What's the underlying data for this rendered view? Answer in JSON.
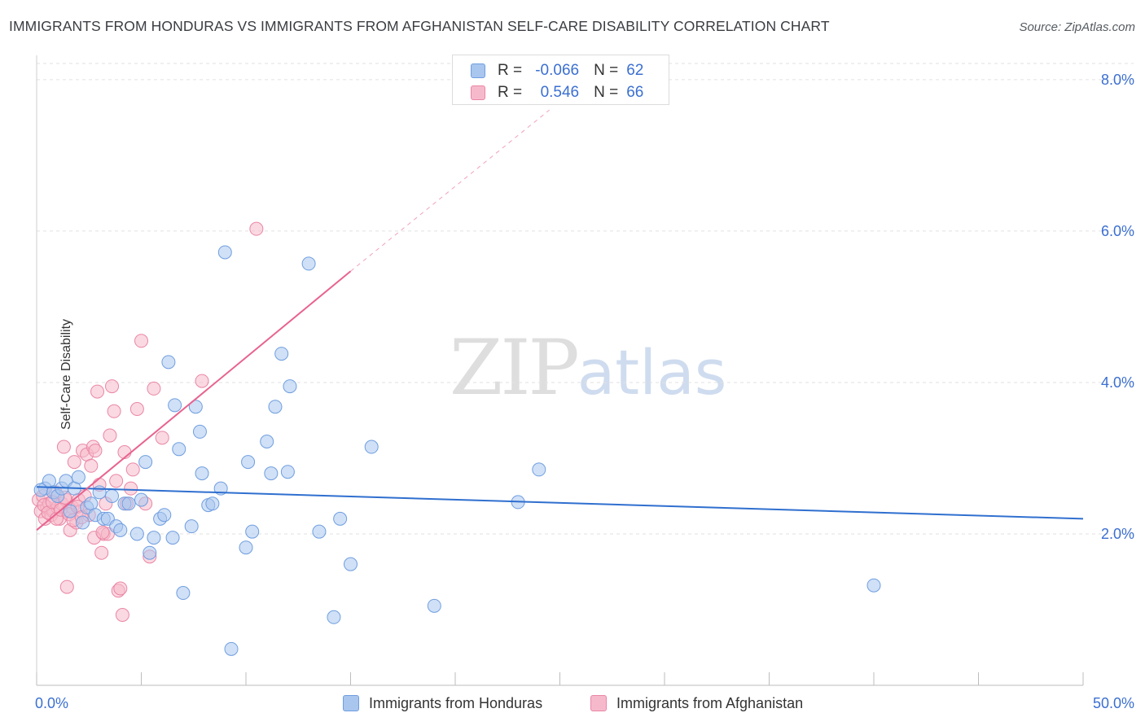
{
  "header": {
    "title": "IMMIGRANTS FROM HONDURAS VS IMMIGRANTS FROM AFGHANISTAN SELF-CARE DISABILITY CORRELATION CHART",
    "source": "Source: ZipAtlas.com"
  },
  "watermark": {
    "zip": "ZIP",
    "atlas": "atlas"
  },
  "legend": {
    "r_label": "R =",
    "n_label": "N =",
    "series": [
      {
        "r": "-0.066",
        "n": "62"
      },
      {
        "r": "0.546",
        "n": "66"
      }
    ]
  },
  "colors": {
    "blue_fill": "#a9c6ef",
    "blue_stroke": "#6f9ee0",
    "blue_line": "#2f6fcf",
    "pink_fill": "#f6b9cb",
    "pink_stroke": "#ea86a5",
    "pink_line": "#e8638e",
    "tick_label": "#3b6fd1",
    "grid": "#e2e2e2"
  },
  "chart_data": {
    "type": "scatter",
    "title": "IMMIGRANTS FROM HONDURAS VS IMMIGRANTS FROM AFGHANISTAN SELF-CARE DISABILITY CORRELATION CHART",
    "xlabel": "",
    "ylabel": "Self-Care Disability",
    "xlim": [
      0,
      50
    ],
    "ylim": [
      0,
      8.3
    ],
    "x_tick_labels": [
      "0.0%",
      "50.0%"
    ],
    "y_ticks": [
      2,
      4,
      6,
      8
    ],
    "y_tick_labels": [
      "2.0%",
      "4.0%",
      "6.0%",
      "8.0%"
    ],
    "grid": true,
    "legend_position": "top-center",
    "series": [
      {
        "name": "Immigrants from Honduras",
        "color": "#6f9ee0",
        "r": -0.066,
        "n": 62,
        "trend": {
          "x": [
            0,
            50
          ],
          "y": [
            2.62,
            2.2
          ]
        },
        "points": [
          [
            0.4,
            2.6
          ],
          [
            0.6,
            2.7
          ],
          [
            0.8,
            2.55
          ],
          [
            1.0,
            2.5
          ],
          [
            1.2,
            2.6
          ],
          [
            1.4,
            2.7
          ],
          [
            1.6,
            2.3
          ],
          [
            1.8,
            2.6
          ],
          [
            2.0,
            2.75
          ],
          [
            2.2,
            2.15
          ],
          [
            2.4,
            2.35
          ],
          [
            2.6,
            2.4
          ],
          [
            2.8,
            2.25
          ],
          [
            3.0,
            2.55
          ],
          [
            3.2,
            2.2
          ],
          [
            3.4,
            2.2
          ],
          [
            3.6,
            2.5
          ],
          [
            3.8,
            2.1
          ],
          [
            4.0,
            2.05
          ],
          [
            4.2,
            2.4
          ],
          [
            4.4,
            2.4
          ],
          [
            4.8,
            2.0
          ],
          [
            5.0,
            2.45
          ],
          [
            5.2,
            2.95
          ],
          [
            5.4,
            1.75
          ],
          [
            5.6,
            1.95
          ],
          [
            5.9,
            2.2
          ],
          [
            6.1,
            2.25
          ],
          [
            6.3,
            4.27
          ],
          [
            6.5,
            1.95
          ],
          [
            6.6,
            3.7
          ],
          [
            6.8,
            3.12
          ],
          [
            7.0,
            1.22
          ],
          [
            7.4,
            2.1
          ],
          [
            7.6,
            3.68
          ],
          [
            7.8,
            3.35
          ],
          [
            7.9,
            2.8
          ],
          [
            8.2,
            2.38
          ],
          [
            8.4,
            2.4
          ],
          [
            8.8,
            2.6
          ],
          [
            9.0,
            5.72
          ],
          [
            9.3,
            0.48
          ],
          [
            10.0,
            1.82
          ],
          [
            10.1,
            2.95
          ],
          [
            10.3,
            2.03
          ],
          [
            11.0,
            3.22
          ],
          [
            11.2,
            2.8
          ],
          [
            11.4,
            3.68
          ],
          [
            11.7,
            4.38
          ],
          [
            12.0,
            2.82
          ],
          [
            12.1,
            3.95
          ],
          [
            13.0,
            5.57
          ],
          [
            13.5,
            2.03
          ],
          [
            14.2,
            0.9
          ],
          [
            14.5,
            2.2
          ],
          [
            15.0,
            1.6
          ],
          [
            16.0,
            3.15
          ],
          [
            19.0,
            1.05
          ],
          [
            23.0,
            2.42
          ],
          [
            24.0,
            2.85
          ],
          [
            40.0,
            1.32
          ],
          [
            0.2,
            2.58
          ]
        ]
      },
      {
        "name": "Immigrants from Afghanistan",
        "color": "#ea86a5",
        "r": 0.546,
        "n": 66,
        "trend": {
          "x": [
            0,
            15
          ],
          "y": [
            2.05,
            5.47
          ]
        },
        "trend_extension": {
          "x": [
            15,
            24.5
          ],
          "y": [
            5.47,
            7.6
          ]
        },
        "points": [
          [
            0.1,
            2.45
          ],
          [
            0.2,
            2.3
          ],
          [
            0.3,
            2.5
          ],
          [
            0.4,
            2.2
          ],
          [
            0.5,
            2.35
          ],
          [
            0.6,
            2.4
          ],
          [
            0.7,
            2.25
          ],
          [
            0.8,
            2.3
          ],
          [
            0.9,
            2.55
          ],
          [
            1.0,
            2.35
          ],
          [
            1.1,
            2.2
          ],
          [
            1.2,
            2.4
          ],
          [
            1.3,
            3.15
          ],
          [
            1.4,
            2.45
          ],
          [
            1.5,
            2.3
          ],
          [
            1.6,
            2.05
          ],
          [
            1.7,
            2.35
          ],
          [
            1.8,
            2.95
          ],
          [
            1.9,
            2.15
          ],
          [
            2.0,
            2.45
          ],
          [
            2.1,
            2.3
          ],
          [
            2.2,
            3.1
          ],
          [
            2.3,
            2.5
          ],
          [
            2.4,
            3.05
          ],
          [
            2.5,
            2.25
          ],
          [
            2.6,
            2.9
          ],
          [
            2.7,
            3.15
          ],
          [
            2.8,
            3.1
          ],
          [
            2.9,
            3.88
          ],
          [
            3.0,
            2.65
          ],
          [
            3.1,
            1.75
          ],
          [
            3.2,
            2.0
          ],
          [
            3.3,
            2.4
          ],
          [
            3.4,
            2.0
          ],
          [
            3.5,
            3.3
          ],
          [
            3.6,
            3.95
          ],
          [
            3.7,
            3.62
          ],
          [
            3.8,
            2.7
          ],
          [
            3.9,
            1.25
          ],
          [
            4.0,
            1.28
          ],
          [
            4.1,
            0.93
          ],
          [
            4.2,
            3.08
          ],
          [
            4.3,
            2.4
          ],
          [
            4.5,
            2.6
          ],
          [
            4.6,
            2.85
          ],
          [
            4.8,
            3.65
          ],
          [
            5.0,
            4.55
          ],
          [
            5.2,
            2.4
          ],
          [
            5.4,
            1.7
          ],
          [
            5.6,
            3.92
          ],
          [
            6.0,
            3.27
          ],
          [
            7.9,
            4.02
          ],
          [
            10.5,
            6.03
          ],
          [
            1.45,
            1.3
          ],
          [
            2.75,
            1.95
          ],
          [
            3.15,
            2.02
          ],
          [
            0.35,
            2.38
          ],
          [
            0.55,
            2.28
          ],
          [
            0.75,
            2.42
          ],
          [
            0.95,
            2.2
          ],
          [
            1.15,
            2.32
          ],
          [
            1.35,
            2.48
          ],
          [
            1.55,
            2.26
          ],
          [
            1.75,
            2.18
          ],
          [
            1.95,
            2.36
          ],
          [
            2.15,
            2.22
          ]
        ]
      }
    ]
  }
}
